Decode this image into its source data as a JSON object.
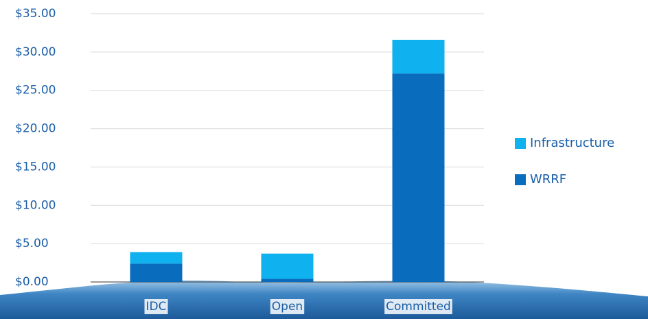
{
  "chart_data": {
    "type": "stacked_bar",
    "categories": [
      "IDC",
      "Open",
      "Committed"
    ],
    "series": [
      {
        "name": "WRRF",
        "color": "#0a6cbc",
        "values": [
          2.4,
          0.4,
          27.2
        ]
      },
      {
        "name": "Infrastructure",
        "color": "#0fb1ee",
        "values": [
          1.5,
          3.3,
          4.4
        ]
      }
    ],
    "ylim": [
      0,
      35
    ],
    "yticks": [
      {
        "value": 0,
        "label": "$0.00"
      },
      {
        "value": 5,
        "label": "$5.00"
      },
      {
        "value": 10,
        "label": "$10.00"
      },
      {
        "value": 15,
        "label": "$15.00"
      },
      {
        "value": 20,
        "label": "$20.00"
      },
      {
        "value": 25,
        "label": "$25.00"
      },
      {
        "value": 30,
        "label": "$30.00"
      },
      {
        "value": 35,
        "label": "$35.00"
      }
    ],
    "grid": true
  }
}
